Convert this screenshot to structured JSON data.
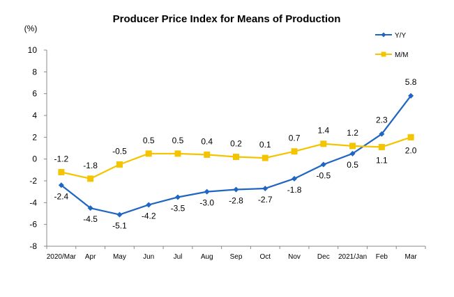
{
  "chart_data": {
    "type": "line",
    "title": "Producer Price Index for Means of Production",
    "ylabel": "(%)",
    "xlabel": "",
    "ylim": [
      -8,
      10
    ],
    "yticks": [
      -8,
      -6,
      -4,
      -2,
      0,
      2,
      4,
      6,
      8,
      10
    ],
    "categories": [
      "2020/Mar",
      "Apr",
      "May",
      "Jun",
      "Jul",
      "Aug",
      "Sep",
      "Oct",
      "Nov",
      "Dec",
      "2021/Jan",
      "Feb",
      "Mar"
    ],
    "grid": false,
    "legend_position": "top-right",
    "series": [
      {
        "name": "Y/Y",
        "color": "#1f66c2",
        "marker": "diamond",
        "values": [
          -2.4,
          -4.5,
          -5.1,
          -4.2,
          -3.5,
          -3.0,
          -2.8,
          -2.7,
          -1.8,
          -0.5,
          0.5,
          2.3,
          5.8
        ],
        "labels": [
          "-2.4",
          "-4.5",
          "-5.1",
          "-4.2",
          "-3.5",
          "-3.0",
          "-2.8",
          "-2.7",
          "-1.8",
          "-0.5",
          "0.5",
          "2.3",
          "5.8"
        ]
      },
      {
        "name": "M/M",
        "color": "#f5c400",
        "marker": "square",
        "values": [
          -1.2,
          -1.8,
          -0.5,
          0.5,
          0.5,
          0.4,
          0.2,
          0.1,
          0.7,
          1.4,
          1.2,
          1.1,
          2.0
        ],
        "labels": [
          "-1.2",
          "-1.8",
          "-0.5",
          "0.5",
          "0.5",
          "0.4",
          "0.2",
          "0.1",
          "0.7",
          "1.4",
          "1.2",
          "1.1",
          "2.0"
        ]
      }
    ]
  }
}
